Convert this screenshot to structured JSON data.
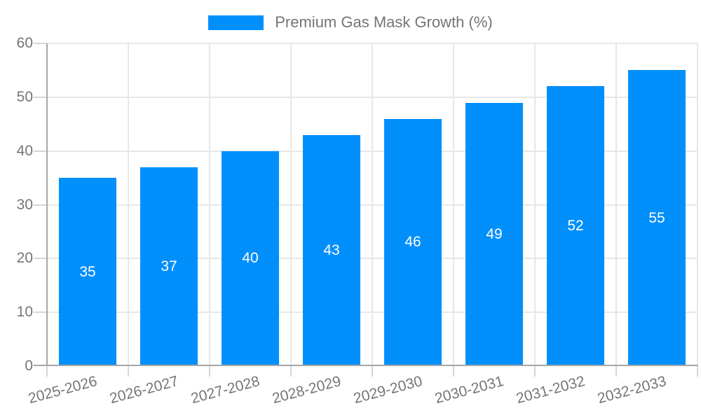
{
  "chart_data": {
    "type": "bar",
    "title": "Premium Gas Mask Growth (%)",
    "legend": {
      "label": "Premium Gas Mask Growth (%)",
      "position": "top"
    },
    "categories": [
      "2025-2026",
      "2026-2027",
      "2027-2028",
      "2028-2029",
      "2029-2030",
      "2030-2031",
      "2031-2032",
      "2032-2033"
    ],
    "values": [
      35,
      37,
      40,
      43,
      46,
      49,
      52,
      55
    ],
    "yticks": [
      0,
      10,
      20,
      30,
      40,
      50,
      60
    ],
    "ylim": [
      0,
      60
    ],
    "xlabel": "",
    "ylabel": "",
    "grid": true,
    "data_labels": "inside-center-white",
    "colors": {
      "bar": "#008FFB",
      "axis_text": "#757575",
      "gridline": "#e7e7e7",
      "axis_line": "#a6a6a6",
      "bar_label": "#ffffff"
    }
  }
}
